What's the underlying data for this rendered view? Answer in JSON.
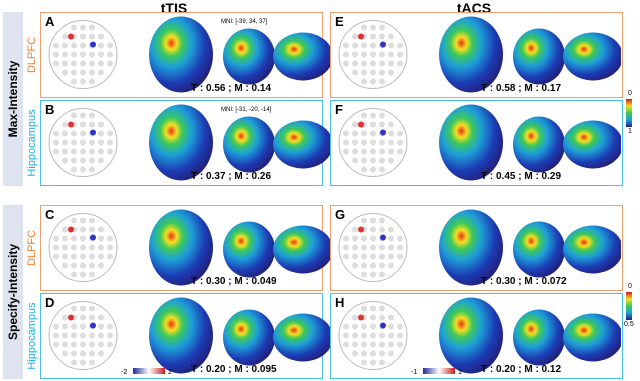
{
  "columns": [
    "tTIS",
    "tACS"
  ],
  "groups": [
    {
      "label": "Max-Intensity",
      "colorbar": {
        "top": "0",
        "bottom": "1"
      },
      "rows": [
        {
          "region": "DLPFC",
          "panels": [
            {
              "letter": "A",
              "mni": "MNI: [-39, 34, 37]",
              "stats": "T : 0.56 ; M : 0.14"
            },
            {
              "letter": "E",
              "stats": "T : 0.58 ; M : 0.17"
            }
          ]
        },
        {
          "region": "Hippocampus",
          "panels": [
            {
              "letter": "B",
              "mni": "MNI: [-31, -20, -14]",
              "stats": "T : 0.37 ; M : 0.26"
            },
            {
              "letter": "F",
              "stats": "T : 0.45 ; M : 0.29"
            }
          ]
        }
      ]
    },
    {
      "label": "Specify-Intensity",
      "colorbar": {
        "top": "0",
        "bottom": "0.5"
      },
      "rows": [
        {
          "region": "DLPFC",
          "panels": [
            {
              "letter": "C",
              "stats": "T : 0.30 ; M : 0.049"
            },
            {
              "letter": "G",
              "stats": "T : 0.30 ; M : 0.072"
            }
          ]
        },
        {
          "region": "Hippocampus",
          "panels": [
            {
              "letter": "D",
              "stats": "T : 0.20 ; M : 0.095",
              "scale": {
                "min": "-2",
                "max": "2"
              }
            },
            {
              "letter": "H",
              "stats": "T : 0.20 ; M : 0.12",
              "scale": {
                "min": "-1",
                "max": "1"
              }
            }
          ]
        }
      ]
    }
  ]
}
